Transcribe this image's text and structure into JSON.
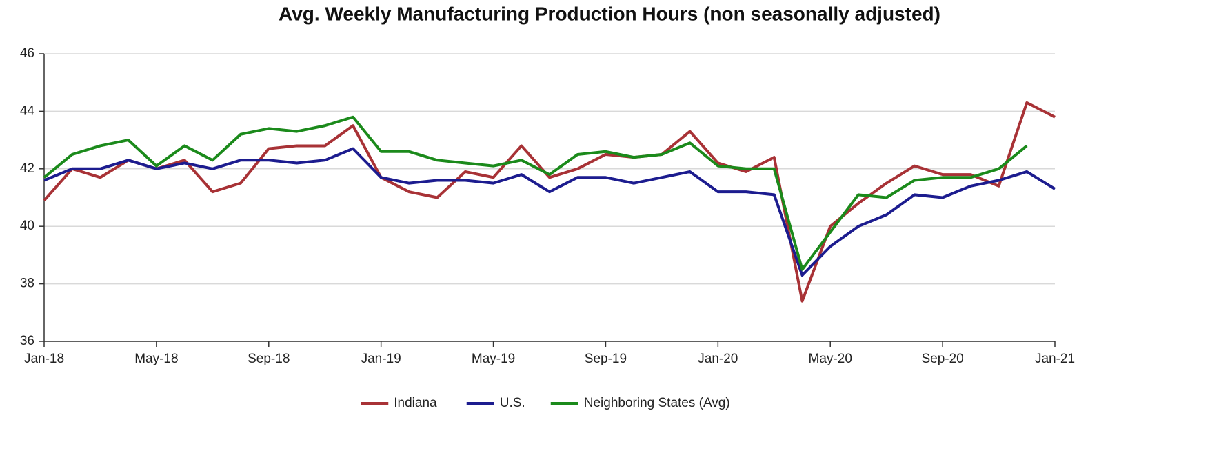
{
  "chart_data": {
    "type": "line",
    "title": "Avg. Weekly Manufacturing Production Hours (non seasonally adjusted)",
    "categories": [
      "Jan-18",
      null,
      null,
      null,
      "May-18",
      null,
      null,
      null,
      "Sep-18",
      null,
      null,
      null,
      "Jan-19",
      null,
      null,
      null,
      "May-19",
      null,
      null,
      null,
      "Sep-19",
      null,
      null,
      null,
      "Jan-20",
      null,
      null,
      null,
      "May-20",
      null,
      null,
      null,
      "Sep-20",
      null,
      null,
      null,
      "Jan-21"
    ],
    "series": [
      {
        "name": "Indiana",
        "color": "#a83236",
        "values": [
          40.9,
          42.0,
          41.7,
          42.3,
          42.0,
          42.3,
          41.2,
          41.5,
          42.7,
          42.8,
          42.8,
          43.5,
          41.7,
          41.2,
          41.0,
          41.9,
          41.7,
          42.8,
          41.7,
          42.0,
          42.5,
          42.4,
          42.5,
          43.3,
          42.2,
          41.9,
          42.4,
          37.4,
          40.0,
          40.8,
          41.5,
          42.1,
          41.8,
          41.8,
          41.4,
          44.3,
          43.8
        ]
      },
      {
        "name": "U.S.",
        "color": "#1c1c8f",
        "values": [
          41.6,
          42.0,
          42.0,
          42.3,
          42.0,
          42.2,
          42.0,
          42.3,
          42.3,
          42.2,
          42.3,
          42.7,
          41.7,
          41.5,
          41.6,
          41.6,
          41.5,
          41.8,
          41.2,
          41.7,
          41.7,
          41.5,
          41.7,
          41.9,
          41.2,
          41.2,
          41.1,
          38.3,
          39.3,
          40.0,
          40.4,
          41.1,
          41.0,
          41.4,
          41.6,
          41.9,
          41.3
        ]
      },
      {
        "name": "Neighboring States (Avg)",
        "color": "#1b8a1b",
        "values": [
          41.7,
          42.5,
          42.8,
          43.0,
          42.1,
          42.8,
          42.3,
          43.2,
          43.4,
          43.3,
          43.5,
          43.8,
          42.6,
          42.6,
          42.3,
          42.2,
          42.1,
          42.3,
          41.8,
          42.5,
          42.6,
          42.4,
          42.5,
          42.9,
          42.1,
          42.0,
          42.0,
          38.5,
          39.8,
          41.1,
          41.0,
          41.6,
          41.7,
          41.7,
          42.0,
          42.8,
          null
        ]
      }
    ],
    "ylim": [
      36,
      46
    ],
    "yticks": [
      36,
      38,
      40,
      42,
      44,
      46
    ],
    "grid": true,
    "legend": "bottom"
  }
}
